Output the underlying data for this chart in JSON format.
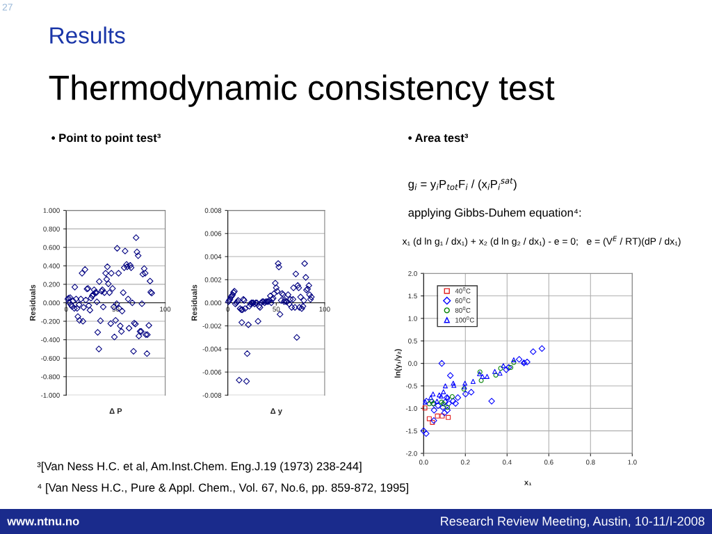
{
  "chart_data": [
    {
      "type": "other",
      "subtitle": "Results",
      "title": "Thermodynamic consistency test",
      "annotations": [
        "27",
        "• Point to point test³",
        "• Area test³",
        "g$_{i}$ = y$_{i}$P$_{tot}$F$_{i}$ / (x$_{i}$P$_{i}$$^{sat}$)",
        "applying Gibbs-Duhem equation⁴:",
        "x₁ (d ln g₁ / dx₁) + x₂ (d ln g₂ / dx₁) - e = 0;   e = (V$^{E}$ / RT)(dP / dx₁)",
        "³[Van Ness H.C. et al, Am.Inst.Chem. Eng.J.19 (1973) 238-244]",
        "⁴ [Van Ness H.C., Pure & Appl. Chem., Vol. 67, No.6, pp. 859-872, 1995]",
        "www.ntnu.no",
        "Research Review Meeting, Austin, 10-11/I-2008"
      ]
    },
    {
      "type": "scatter",
      "xlabel": "Δ P",
      "ylabel": "Residuals",
      "marker": "diamond",
      "grid": "y",
      "xlim": [
        0,
        100
      ],
      "xticks": [
        0,
        50,
        100
      ],
      "ylim": [
        -1,
        1
      ],
      "yticks": [
        {
          "value": -1,
          "label": "-1.000"
        },
        {
          "value": -0.8,
          "label": "-0.800"
        },
        {
          "value": -0.6,
          "label": "-0.600"
        },
        {
          "value": -0.4,
          "label": "-0.400"
        },
        {
          "value": -0.2,
          "label": "-0.200"
        },
        {
          "value": 0,
          "label": "0.000"
        },
        {
          "value": 0.2,
          "label": "0.200"
        },
        {
          "value": 0.4,
          "label": "0.400"
        },
        {
          "value": 0.6,
          "label": "0.600"
        },
        {
          "value": 0.8,
          "label": "0.800"
        },
        {
          "value": 1,
          "label": "1.000"
        }
      ],
      "series": [
        {
          "color": "#000080",
          "x": [
            1.6,
            2.4,
            4,
            2.8,
            4.7,
            5.9,
            7,
            8.2,
            8.7,
            10,
            11,
            11.8,
            13,
            13.4,
            14.8,
            16,
            16.9,
            17.6,
            19,
            19.8,
            21,
            22,
            22.8,
            24,
            25,
            26.4,
            27.3,
            28.2,
            29.4,
            30.4,
            31,
            31.8,
            33.4,
            33,
            34.6,
            35.8,
            36.5,
            37.4,
            38.6,
            39.8,
            40.9,
            41.6,
            42.6,
            43.7,
            45,
            45.6,
            46.8,
            48,
            48.7,
            49.9,
            51,
            51.5,
            52.9,
            53.4,
            54.6,
            55.8,
            56.5,
            57.6,
            58.6,
            59.5,
            61,
            61.6,
            62.6,
            63.5,
            64.7,
            65.6,
            66.8,
            68,
            68.7,
            69.9,
            70.6,
            71.5,
            72.7,
            73.4,
            74.6,
            75.8,
            76.5,
            77.4,
            78.8,
            79.8,
            80.5,
            82,
            81.6,
            83.5,
            84.7,
            85.4,
            86.4
          ],
          "values": [
            0.04,
            0.05,
            0.055,
            0.005,
            -0.02,
            -0.04,
            0.02,
            -0.06,
            0.17,
            0.04,
            -0.06,
            -0.15,
            -0.02,
            -0.19,
            0.04,
            0.32,
            -0.2,
            -0.05,
            0.36,
            0.03,
            0.15,
            0.155,
            -0.03,
            -0.08,
            0.05,
            0.075,
            0.09,
            0.14,
            0.11,
            0.11,
            0.01,
            -0.32,
            0.23,
            -0.5,
            -0.195,
            0.125,
            0.14,
            -0.045,
            0.11,
            0.32,
            0.255,
            0.39,
            0.205,
            0.11,
            -0.225,
            0.32,
            0.155,
            -0.045,
            -0.37,
            -0.19,
            -0.01,
            0.59,
            0.32,
            -0.06,
            -0.25,
            -0.31,
            -0.09,
            0.11,
            0.38,
            0.56,
            0.415,
            0.39,
            0.04,
            -0.275,
            0.405,
            0.38,
            0.0,
            -0.525,
            -0.22,
            -0.23,
            0.705,
            0.55,
            0.51,
            -0.36,
            -0.31,
            -0.31,
            -0.01,
            0.31,
            0.37,
            0.32,
            -0.345,
            -0.345,
            -0.55,
            -0.245,
            0.235,
            0.115,
            0.105
          ]
        }
      ]
    },
    {
      "type": "scatter",
      "xlabel": "Δ y",
      "ylabel": "Residuals",
      "marker": "diamond",
      "grid": "y",
      "xlim": [
        0,
        100
      ],
      "xticks": [
        0,
        50,
        100
      ],
      "ylim": [
        -0.008,
        0.008
      ],
      "yticks": [
        {
          "value": -0.008,
          "label": "-0.008"
        },
        {
          "value": -0.006,
          "label": "-0.006"
        },
        {
          "value": -0.004,
          "label": "-0.004"
        },
        {
          "value": -0.002,
          "label": "-0.002"
        },
        {
          "value": 0,
          "label": "0.000"
        },
        {
          "value": 0.002,
          "label": "0.002"
        },
        {
          "value": 0.004,
          "label": "0.004"
        },
        {
          "value": 0.006,
          "label": "0.006"
        },
        {
          "value": 0.008,
          "label": "0.008"
        }
      ],
      "series": [
        {
          "color": "#000080",
          "x": [
            0.7,
            1.5,
            2.2,
            3.2,
            4.1,
            4.9,
            5.9,
            6.8,
            7.8,
            8.8,
            9.8,
            10.7,
            11.7,
            12.7,
            13.9,
            14.4,
            15.1,
            16.1,
            16.8,
            17.8,
            19.3,
            20,
            21.2,
            22.2,
            23.4,
            24.4,
            25.4,
            26.3,
            27.6,
            28.8,
            30,
            31.2,
            32.2,
            33.2,
            34.4,
            35.6,
            36.8,
            38,
            39.3,
            40.5,
            41.7,
            42.9,
            43.9,
            44.9,
            45.9,
            46.8,
            47.8,
            49,
            50,
            51,
            52,
            52.7,
            53.9,
            55.1,
            56.1,
            57.1,
            58,
            59,
            60,
            61.2,
            62.2,
            63.4,
            64.6,
            65.9,
            67.3,
            67.8,
            69.3,
            70.2,
            71.2,
            72.2,
            73.2,
            73.9,
            75.1,
            76.3,
            77.6,
            78.5,
            79.3,
            80.5,
            81.2,
            82.4,
            83.7,
            84.4,
            85.4,
            86.3
          ],
          "values": [
            0.0001,
            0.0002,
            0.0003,
            0.0005,
            0.0006,
            0.0007,
            0.0009,
            0.001,
            -0.0001,
            0,
            0.0001,
            0.0002,
            -0.0067,
            -0.0005,
            -0.0006,
            -0.0017,
            -0.0006,
            0.0003,
            0.0002,
            -0.0005,
            -0.0068,
            -0.0044,
            -0.0019,
            -0.0003,
            -0.0001,
            0,
            0,
            0,
            -0.0001,
            0,
            0,
            -0.0016,
            -0.0003,
            -0.0004,
            0,
            0.0001,
            0.0001,
            0,
            0.0001,
            0.0001,
            0.0001,
            0.0002,
            0.0006,
            0,
            0.0003,
            0.0004,
            0.0008,
            0.0017,
            0.0013,
            0.001,
            0.0034,
            0.0031,
            -0.001,
            0.0002,
            0.0008,
            0.0007,
            0.0001,
            0.0002,
            0.0001,
            0.0001,
            0.0007,
            -0.0001,
            0.0003,
            -0.0004,
            0.0003,
            0.0013,
            -0.0004,
            0.0025,
            -0.003,
            0.0015,
            0.0013,
            -0.0004,
            0.0005,
            -0.0005,
            -0.0003,
            0.0002,
            0.0034,
            0.0022,
            0.0011,
            0.0012,
            0.0015,
            0.0007,
            0.0003,
            0.0005
          ]
        }
      ]
    },
    {
      "type": "scatter",
      "xlabel": "x₁",
      "ylabel": "ln(γ₁/γ₂)",
      "grid": true,
      "legend": "top left",
      "xlim": [
        0,
        1
      ],
      "xticks": [
        {
          "value": 0,
          "label": "0.0"
        },
        {
          "value": 0.2,
          "label": "0.2"
        },
        {
          "value": 0.4,
          "label": "0.4"
        },
        {
          "value": 0.6,
          "label": "0.6"
        },
        {
          "value": 0.8,
          "label": "0.8"
        },
        {
          "value": 1,
          "label": "1.0"
        }
      ],
      "ylim": [
        -2,
        2
      ],
      "yticks": [
        {
          "value": -2,
          "label": "-2.0"
        },
        {
          "value": -1.5,
          "label": "-1.5"
        },
        {
          "value": -1,
          "label": "-1.0"
        },
        {
          "value": -0.5,
          "label": "-0.5"
        },
        {
          "value": 0,
          "label": "0.0"
        },
        {
          "value": 0.5,
          "label": "0.5"
        },
        {
          "value": 1,
          "label": "1.0"
        },
        {
          "value": 1.5,
          "label": "1.5"
        },
        {
          "value": 2,
          "label": "2.0"
        }
      ],
      "series": [
        {
          "name": "40$^{0}$C",
          "color": "#e02020",
          "marker": "square",
          "x": [
            0.006,
            0.027,
            0.042,
            0.066,
            0.089,
            0.118
          ],
          "values": [
            -0.99,
            -1.23,
            -1.31,
            -1.17,
            -1.17,
            -1.2
          ]
        },
        {
          "name": "60$^{0}$C",
          "color": "#0000ff",
          "marker": "diamond",
          "x": [
            0,
            0.012,
            0.013,
            0.049,
            0.05,
            0.047,
            0.069,
            0.087,
            0.092,
            0.1,
            0.103,
            0.114,
            0.112,
            0.12,
            0.128,
            0.141,
            0.153,
            0.164,
            0.201,
            0.228,
            0.326,
            0.396,
            0.408,
            0.458,
            0.481,
            0.496,
            0.525,
            0.567
          ],
          "values": [
            -1.5,
            -1.56,
            -0.84,
            -1.27,
            -1.04,
            -0.89,
            -0.94,
            0.0,
            -0.98,
            -1.1,
            -0.86,
            -1.04,
            -0.76,
            -0.89,
            -0.27,
            -0.84,
            -0.89,
            -0.76,
            -0.68,
            -0.64,
            -0.84,
            -0.14,
            -0.09,
            0.09,
            0.01,
            0.03,
            0.26,
            0.33
          ]
        },
        {
          "name": "80$^{0}$C",
          "color": "#008000",
          "marker": "circle",
          "x": [
            0.027,
            0.039,
            0.047,
            0.086,
            0.094,
            0.114,
            0.137,
            0.193,
            0.27,
            0.276,
            0.346,
            0.369,
            0.418,
            0.432
          ],
          "values": [
            -0.9,
            -0.84,
            -0.9,
            -0.86,
            -0.9,
            -0.98,
            -0.74,
            -0.57,
            -0.19,
            -0.38,
            -0.26,
            -0.11,
            -0.09,
            0.02
          ]
        },
        {
          "name": "100$^{0}$C",
          "color": "#0000ff",
          "marker": "triangle",
          "x": [
            0.008,
            0.034,
            0.045,
            0.064,
            0.075,
            0.084,
            0.095,
            0.104,
            0.114,
            0.142,
            0.145,
            0.198,
            0.196,
            0.237,
            0.268,
            0.282,
            0.304,
            0.341,
            0.366,
            0.382,
            0.432,
            0.48
          ],
          "values": [
            -0.86,
            -0.76,
            -0.68,
            -0.84,
            -0.7,
            -0.73,
            -0.63,
            -0.5,
            -0.75,
            -0.44,
            -0.49,
            -0.44,
            -0.52,
            -0.4,
            -0.23,
            -0.29,
            -0.29,
            -0.18,
            -0.22,
            -0.05,
            0.08,
            0.03
          ]
        }
      ]
    }
  ]
}
